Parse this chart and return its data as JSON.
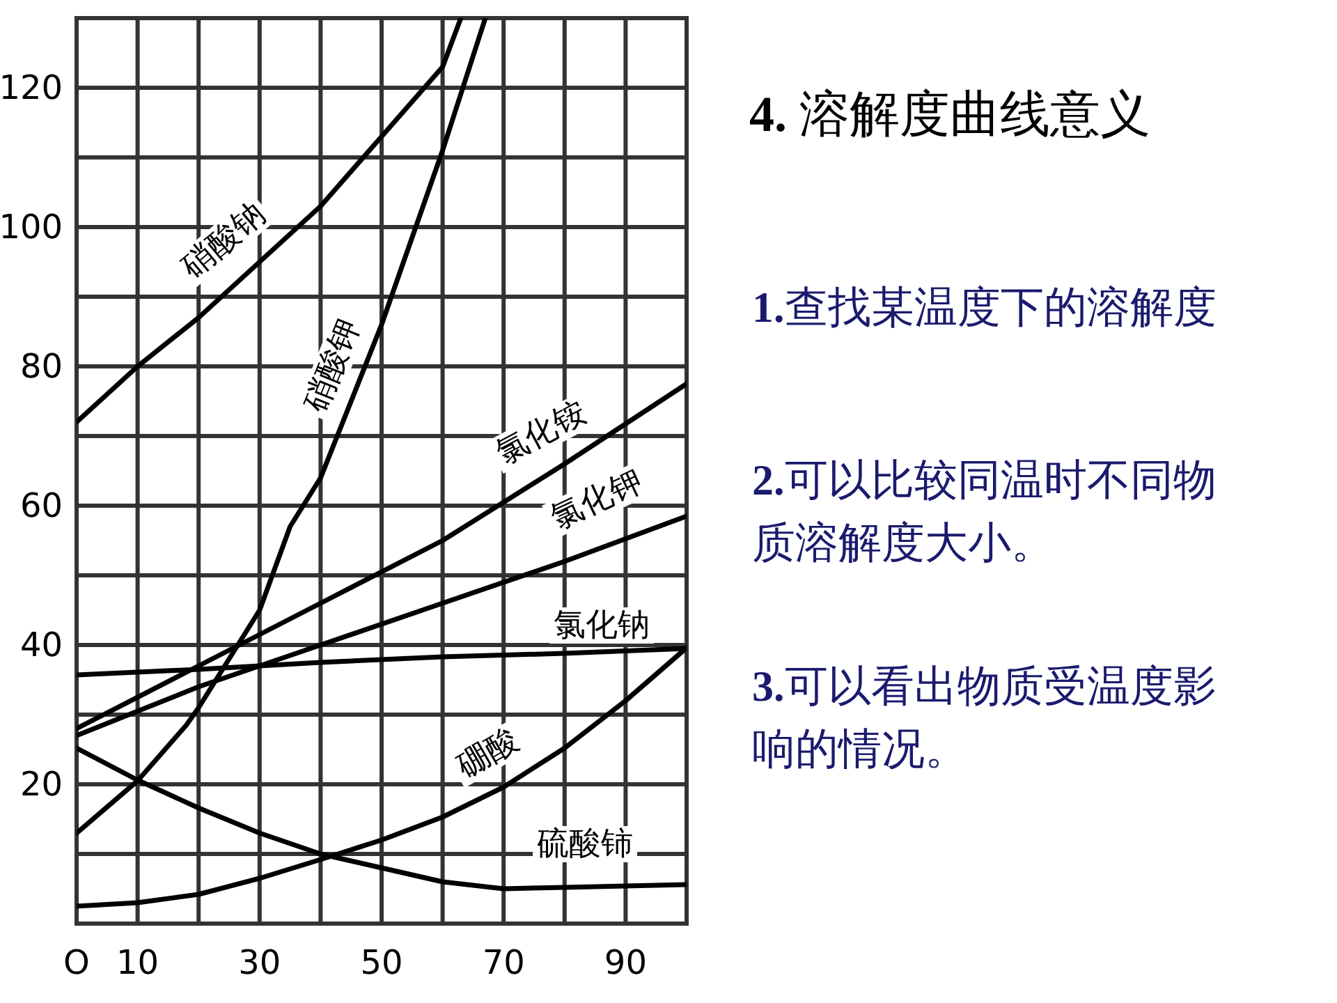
{
  "chart_data": {
    "type": "line",
    "title": "4. 溶解度曲线意义",
    "annotations": [
      "1.查找某温度下的溶解度",
      "2.可以比较同温时不同物质溶解度大小。",
      "3.可以看出物质受温度影响的情况。"
    ],
    "xlim": [
      0,
      100
    ],
    "ylim": [
      0,
      130
    ],
    "xticks": [
      {
        "value": 0,
        "label": "O"
      },
      10,
      {
        "value": 20,
        "label": null
      },
      30,
      {
        "value": 40,
        "label": null
      },
      50,
      {
        "value": 60,
        "label": null
      },
      70,
      {
        "value": 80,
        "label": null
      },
      90,
      {
        "value": 100,
        "label": null
      }
    ],
    "yticks": [
      {
        "value": 10,
        "label": null
      },
      20,
      {
        "value": 30,
        "label": null
      },
      40,
      {
        "value": 50,
        "label": null
      },
      60,
      {
        "value": 70,
        "label": null
      },
      80,
      {
        "value": 90,
        "label": null
      },
      100,
      {
        "value": 110,
        "label": null
      },
      120
    ],
    "grid": true,
    "series": [
      {
        "name": "硝酸钠",
        "color": "#000000",
        "x": [
          0,
          10,
          20,
          30,
          40,
          50,
          60,
          63
        ],
        "values": [
          72,
          80,
          87,
          95,
          103,
          113,
          123,
          130
        ]
      },
      {
        "name": "硝酸钾",
        "color": "#000000",
        "x": [
          0,
          10,
          18,
          20,
          30,
          35,
          40,
          50,
          60,
          67
        ],
        "values": [
          13,
          20.5,
          28.5,
          31,
          45,
          57,
          64,
          86,
          111,
          130
        ]
      },
      {
        "name": "氯化铵",
        "color": "#000000",
        "x": [
          0,
          20,
          40,
          60,
          80,
          100
        ],
        "values": [
          28,
          37,
          46,
          55,
          66,
          77.5
        ]
      },
      {
        "name": "氯化钾",
        "color": "#000000",
        "x": [
          0,
          20,
          40,
          60,
          80,
          100
        ],
        "values": [
          27,
          34,
          40,
          46,
          52,
          58.5
        ]
      },
      {
        "name": "氯化钠",
        "color": "#000000",
        "x": [
          0,
          20,
          40,
          60,
          80,
          100
        ],
        "values": [
          35.7,
          36.5,
          37.5,
          38.3,
          38.8,
          39.5
        ]
      },
      {
        "name": "硼酸",
        "color": "#000000",
        "x": [
          0,
          10,
          20,
          30,
          40,
          50,
          60,
          70,
          80,
          90,
          100
        ],
        "values": [
          2.5,
          3,
          4.2,
          6.5,
          9.2,
          12,
          15.3,
          19.6,
          25.2,
          32,
          39.6
        ]
      },
      {
        "name": "硫酸铈",
        "color": "#000000",
        "x": [
          0,
          10,
          20,
          30,
          40,
          50,
          60,
          70,
          80,
          90,
          100
        ],
        "values": [
          25.2,
          20.6,
          16.6,
          13,
          10,
          8,
          6,
          5,
          5.2,
          5.4,
          5.6
        ]
      }
    ]
  }
}
